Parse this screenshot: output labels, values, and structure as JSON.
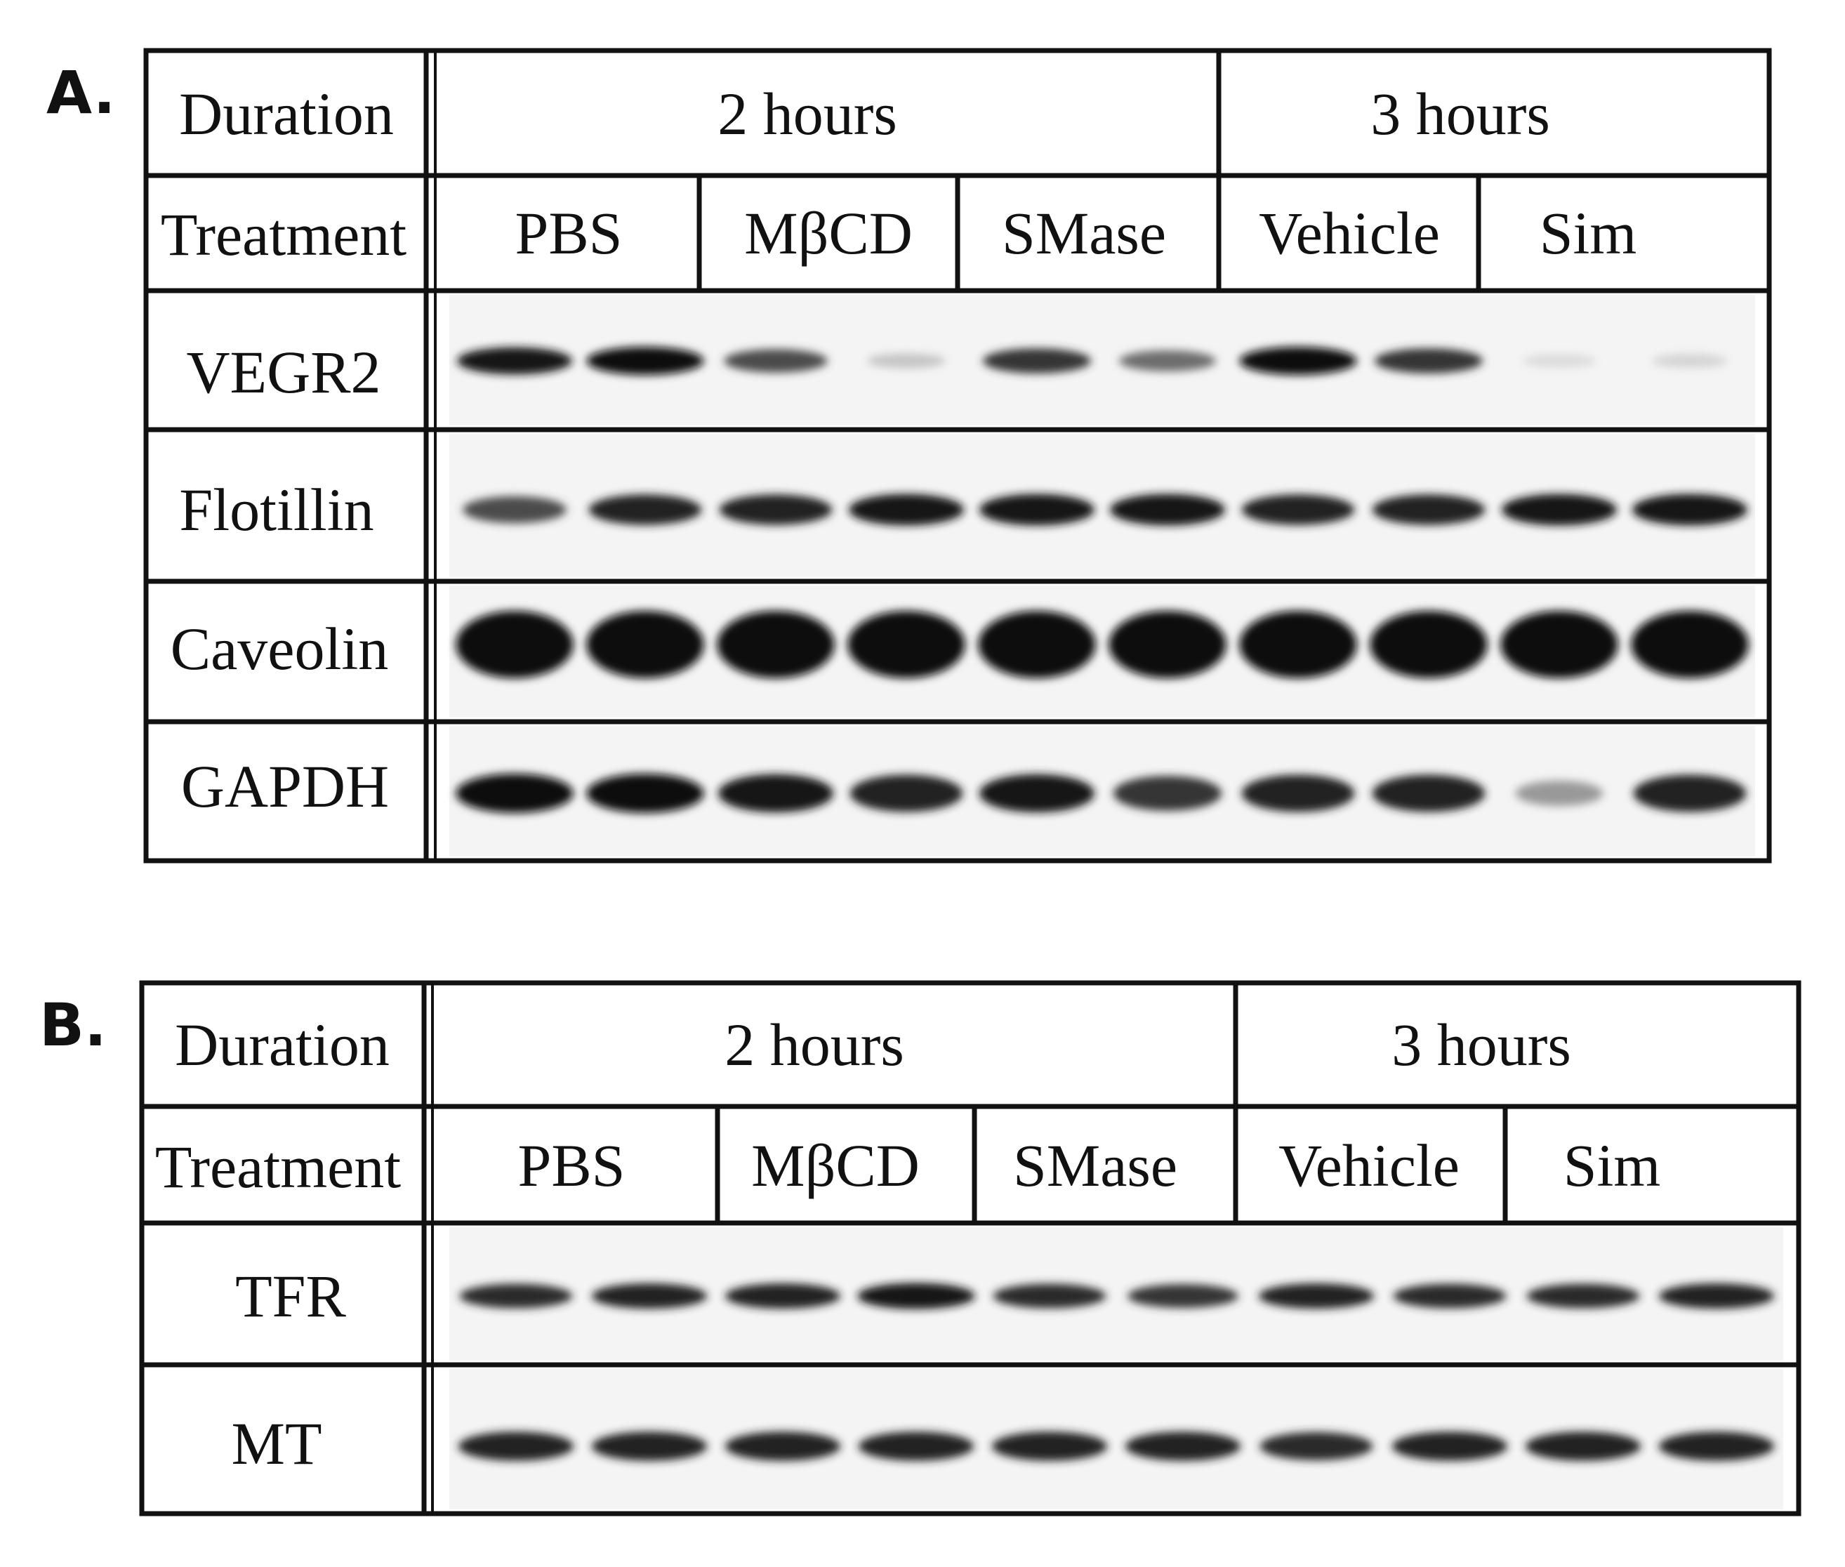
{
  "panels": [
    {
      "letter": "A.",
      "duration_label": "Duration",
      "treatment_label": "Treatment",
      "durations": [
        "2 hours",
        "3 hours"
      ],
      "treatments": [
        "PBS",
        "MβCD",
        "SMase",
        "Vehicle",
        "Sim"
      ],
      "rows": [
        {
          "name": "VEGR2",
          "intensities": [
            0.95,
            1.0,
            0.7,
            0.15,
            0.8,
            0.55,
            1.0,
            0.8,
            0.05,
            0.08
          ]
        },
        {
          "name": "Flotillin",
          "intensities": [
            0.7,
            0.9,
            0.9,
            0.95,
            0.95,
            0.95,
            0.9,
            0.9,
            0.95,
            0.95
          ]
        },
        {
          "name": "Caveolin",
          "intensities": [
            1.0,
            1.0,
            1.0,
            1.0,
            1.0,
            1.0,
            1.0,
            1.0,
            1.0,
            1.0
          ]
        },
        {
          "name": "GAPDH",
          "intensities": [
            1.0,
            1.0,
            0.95,
            0.9,
            0.95,
            0.8,
            0.9,
            0.9,
            0.35,
            0.9
          ]
        }
      ]
    },
    {
      "letter": "B.",
      "duration_label": "Duration",
      "treatment_label": "Treatment",
      "durations": [
        "2 hours",
        "3 hours"
      ],
      "treatments": [
        "PBS",
        "MβCD",
        "SMase",
        "Vehicle",
        "Sim"
      ],
      "rows": [
        {
          "name": "TFR",
          "intensities": [
            0.85,
            0.9,
            0.9,
            0.95,
            0.85,
            0.8,
            0.9,
            0.85,
            0.85,
            0.9
          ]
        },
        {
          "name": "MT",
          "intensities": [
            0.9,
            0.9,
            0.9,
            0.9,
            0.9,
            0.9,
            0.85,
            0.9,
            0.9,
            0.9
          ]
        }
      ]
    }
  ]
}
